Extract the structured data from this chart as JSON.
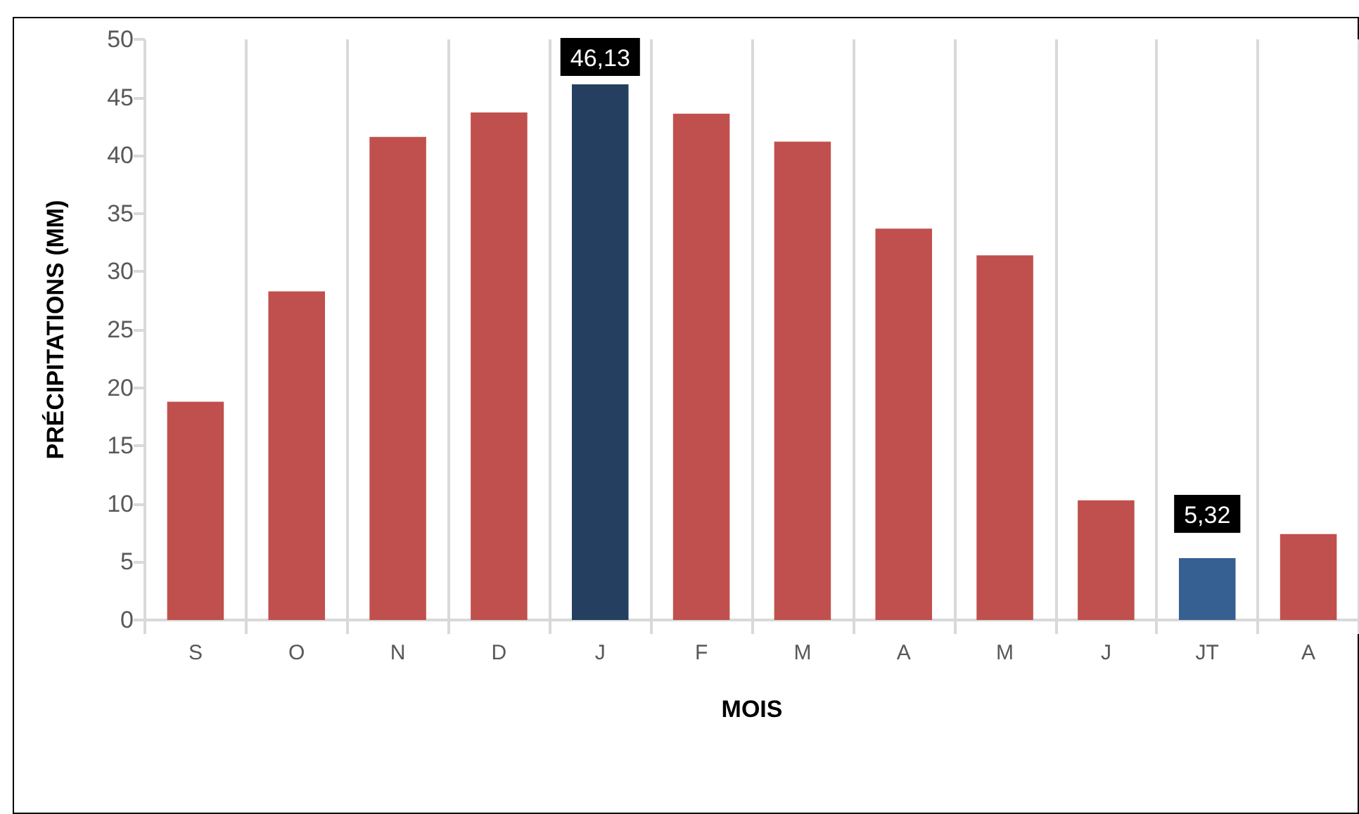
{
  "chart_data": {
    "type": "bar",
    "xlabel": "MOIS",
    "ylabel": "PRÉCIPITATIONS (MM)",
    "categories": [
      "S",
      "O",
      "N",
      "D",
      "J",
      "F",
      "M",
      "A",
      "M",
      "J",
      "JT",
      "A"
    ],
    "values": [
      18.8,
      28.3,
      41.6,
      43.7,
      46.13,
      43.6,
      41.2,
      33.7,
      31.4,
      10.3,
      5.32,
      7.4
    ],
    "colors": [
      "#c0504d",
      "#c0504d",
      "#c0504d",
      "#c0504d",
      "#243f60",
      "#c0504d",
      "#c0504d",
      "#c0504d",
      "#c0504d",
      "#c0504d",
      "#376092",
      "#c0504d"
    ],
    "value_labels": [
      null,
      null,
      null,
      null,
      "46,13",
      null,
      null,
      null,
      null,
      null,
      "5,32",
      null
    ],
    "ylim": [
      0,
      50
    ],
    "yticks": [
      0,
      5,
      10,
      15,
      20,
      25,
      30,
      35,
      40,
      45,
      50
    ],
    "grid": "x"
  }
}
